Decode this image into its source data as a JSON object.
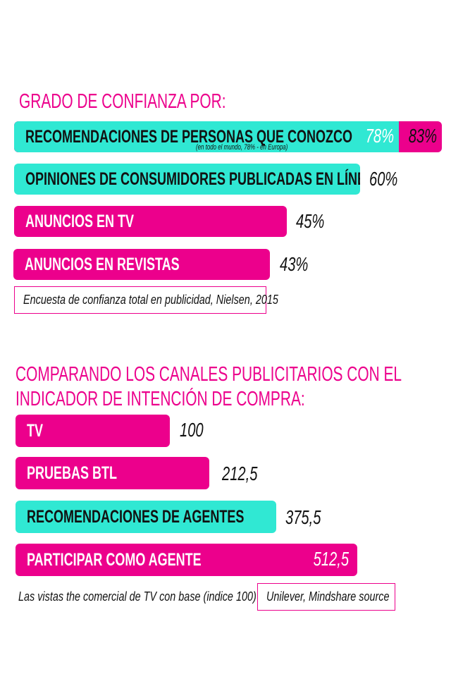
{
  "colors": {
    "pink": "#ec008c",
    "teal": "#30e8d3"
  },
  "chart_data": [
    {
      "type": "bar",
      "title": "GRADO DE CONFIANZA POR:",
      "categories": [
        "RECOMENDACIONES DE PERSONAS QUE CONOZCO",
        "OPINIONES DE CONSUMIDORES PUBLICADAS EN LÍNEA",
        "ANUNCIOS EN TV",
        "ANUNCIOS EN REVISTAS"
      ],
      "values": [
        83,
        60,
        45,
        43
      ],
      "value_labels": [
        "83%",
        "60%",
        "45%",
        "43%"
      ],
      "secondary": {
        "value": 78,
        "label": "78%"
      },
      "annotation": "(en todo el mundo, 78% - en Europa)",
      "source": "Encuesta de confianza total en publicidad, Nielsen, 2015"
    },
    {
      "type": "bar",
      "title_line1": "COMPARANDO LOS CANALES PUBLICITARIOS CON EL",
      "title_line2": "INDICADOR DE INTENCIÓN DE COMPRA:",
      "categories": [
        "TV",
        "PRUEBAS BTL",
        "RECOMENDACIONES DE AGENTES",
        "PARTICIPAR COMO AGENTE"
      ],
      "values": [
        100,
        212.5,
        375.5,
        512.5
      ],
      "value_labels": [
        "100",
        "212,5",
        "375,5",
        "512,5"
      ],
      "note": "Las vistas the comercial de TV con base (indice 100)",
      "source": "Unilever, Mindshare source"
    }
  ]
}
